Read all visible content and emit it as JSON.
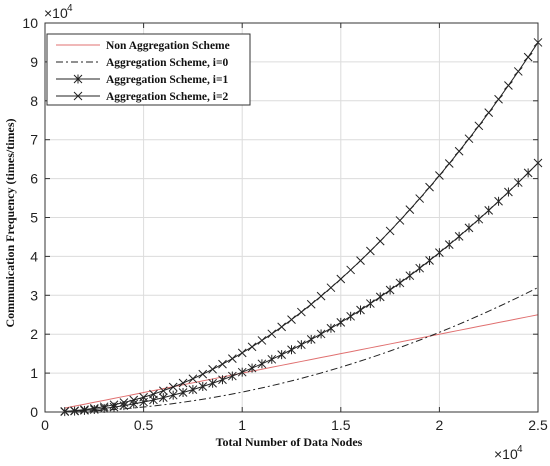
{
  "chart_data": {
    "type": "line",
    "xlabel": "Total Number of Data Nodes",
    "ylabel": "Communication Frequency (times/times)",
    "x_scale_label": {
      "base": "×10",
      "exp": "4"
    },
    "y_scale_label": {
      "base": "×10",
      "exp": "4"
    },
    "xlim": [
      0,
      25000
    ],
    "ylim": [
      0,
      100000
    ],
    "x_ticks": [
      0,
      5000,
      10000,
      15000,
      20000,
      25000
    ],
    "x_tick_labels": [
      "0",
      "0.5",
      "1",
      "1.5",
      "2",
      "2.5"
    ],
    "y_ticks": [
      0,
      10000,
      20000,
      30000,
      40000,
      50000,
      60000,
      70000,
      80000,
      90000,
      100000
    ],
    "y_tick_labels": [
      "0",
      "1",
      "2",
      "3",
      "4",
      "5",
      "6",
      "7",
      "8",
      "9",
      "10"
    ],
    "grid": true,
    "legend_position": "top-left",
    "x": [
      1000,
      1500,
      2000,
      2500,
      3000,
      3500,
      4000,
      4500,
      5000,
      5500,
      6000,
      6500,
      7000,
      7500,
      8000,
      8500,
      9000,
      9500,
      10000,
      10500,
      11000,
      11500,
      12000,
      12500,
      13000,
      13500,
      14000,
      14500,
      15000,
      15500,
      16000,
      16500,
      17000,
      17500,
      18000,
      18500,
      19000,
      19500,
      20000,
      20500,
      21000,
      21500,
      22000,
      22500,
      23000,
      23500,
      24000,
      24500,
      25000
    ],
    "series": [
      {
        "name": "Non Aggregation Scheme",
        "color": "#e07070",
        "style": "solid",
        "marker": "none",
        "values": [
          1000,
          1500,
          2000,
          2500,
          3000,
          3500,
          4000,
          4500,
          5000,
          5500,
          6000,
          6500,
          7000,
          7500,
          8000,
          8500,
          9000,
          9500,
          10000,
          10500,
          11000,
          11500,
          12000,
          12500,
          13000,
          13500,
          14000,
          14500,
          15000,
          15500,
          16000,
          16500,
          17000,
          17500,
          18000,
          18500,
          19000,
          19500,
          20000,
          20500,
          21000,
          21500,
          22000,
          22500,
          23000,
          23500,
          24000,
          24500,
          25000
        ]
      },
      {
        "name": "Aggregation Scheme, i=0",
        "color": "#222222",
        "style": "dashdot",
        "marker": "none",
        "values": [
          51,
          115,
          205,
          320,
          461,
          627,
          819,
          1037,
          1280,
          1549,
          1843,
          2163,
          2509,
          2880,
          3277,
          3699,
          4147,
          4621,
          5120,
          5645,
          6195,
          6771,
          7373,
          8000,
          8653,
          9331,
          10035,
          10765,
          11520,
          12301,
          13107,
          13939,
          14797,
          15680,
          16589,
          17523,
          18483,
          19469,
          20480,
          21517,
          22579,
          23667,
          24781,
          25920,
          27085,
          28275,
          29491,
          30733,
          32000
        ]
      },
      {
        "name": "Aggregation Scheme, i=1",
        "color": "#222222",
        "style": "solid",
        "marker": "asterisk",
        "values": [
          102,
          230,
          410,
          640,
          922,
          1254,
          1638,
          2074,
          2560,
          3098,
          3686,
          4326,
          5018,
          5760,
          6554,
          7398,
          8294,
          9242,
          10240,
          11290,
          12390,
          13542,
          14746,
          16000,
          17306,
          18662,
          20070,
          21530,
          23040,
          24602,
          26214,
          27878,
          29594,
          31360,
          33178,
          35046,
          36966,
          38938,
          40960,
          43034,
          45158,
          47334,
          49562,
          51840,
          54170,
          56550,
          58982,
          61466,
          64000
        ]
      },
      {
        "name": "Aggregation Scheme, i=2",
        "color": "#222222",
        "style": "solid",
        "marker": "x",
        "values": [
          152,
          342,
          608,
          950,
          1368,
          1862,
          2432,
          3078,
          3800,
          4598,
          5472,
          6422,
          7448,
          8550,
          9728,
          10982,
          12312,
          13718,
          15200,
          16758,
          18392,
          20102,
          21888,
          23750,
          25688,
          27702,
          29792,
          31958,
          34200,
          36518,
          38912,
          41382,
          43928,
          46550,
          49248,
          52022,
          54872,
          57798,
          60800,
          63878,
          67032,
          70262,
          73568,
          76950,
          80408,
          83942,
          87552,
          91238,
          95000
        ]
      }
    ]
  }
}
